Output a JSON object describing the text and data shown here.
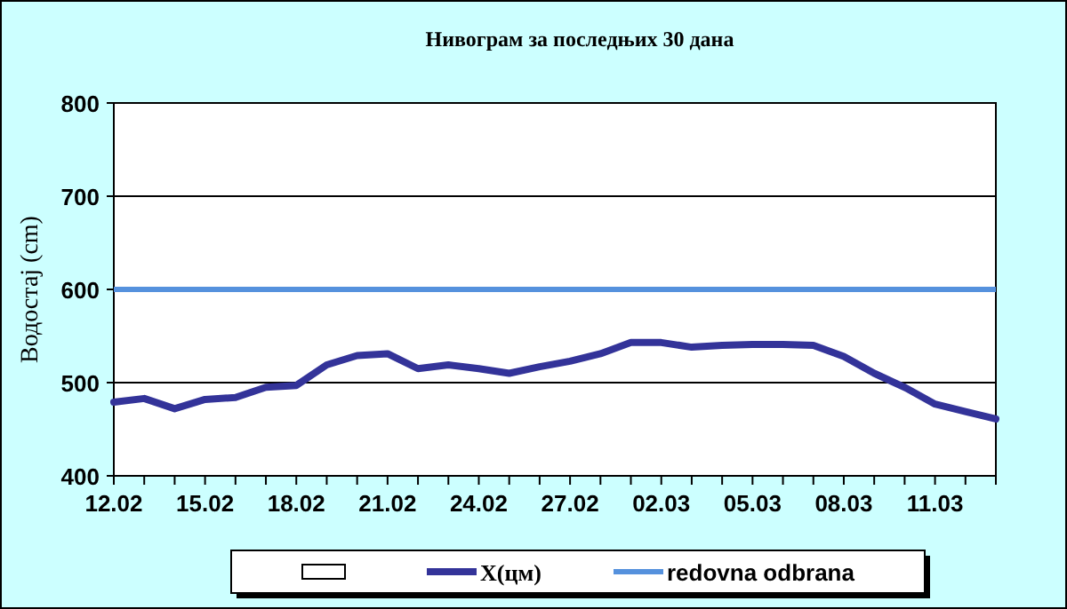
{
  "chart_data": {
    "type": "line",
    "title": "Нивограм за последњих 30 дана",
    "ylabel": "Водостај (cm)",
    "categories": [
      "12.02",
      null,
      null,
      "15.02",
      null,
      null,
      "18.02",
      null,
      null,
      "21.02",
      null,
      null,
      "24.02",
      null,
      null,
      "27.02",
      null,
      null,
      "02.03",
      null,
      null,
      "05.03",
      null,
      null,
      "08.03",
      null,
      null,
      "11.03",
      null,
      null
    ],
    "series": [
      {
        "name": "X(цм)",
        "color": "#333399",
        "values": [
          479,
          483,
          472,
          482,
          484,
          495,
          497,
          519,
          529,
          531,
          515,
          519,
          515,
          510,
          517,
          523,
          531,
          543,
          543,
          538,
          540,
          541,
          541,
          540,
          528,
          510,
          495,
          477,
          469,
          461
        ]
      }
    ],
    "ylim": [
      400,
      800
    ],
    "yticks": [
      400,
      500,
      600,
      700,
      800
    ],
    "grid": "y",
    "legend": "bottom",
    "ref_lines": [
      {
        "axis": "y",
        "value": 600,
        "label": "redovna odbrana",
        "color": "#5591dd"
      }
    ]
  }
}
